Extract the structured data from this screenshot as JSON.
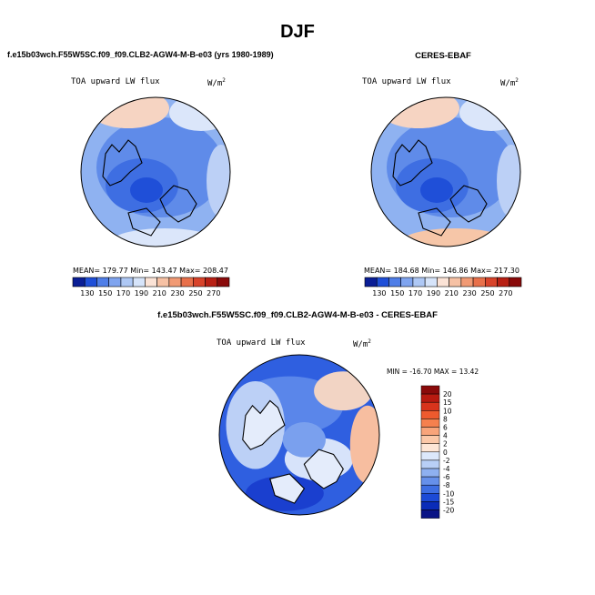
{
  "figure": {
    "season": "DJF",
    "panel_title_model": "f.e15b03wch.F55W5SC.f09_f09.CLB2-AGW4-M-B-e03 (yrs 1980-1989)",
    "panel_title_obs": "CERES-EBAF",
    "panel_title_diff": "f.e15b03wch.F55W5SC.f09_f09.CLB2-AGW4-M-B-e03 - CERES-EBAF"
  },
  "chart_data": [
    {
      "type": "heatmap",
      "panel": "model",
      "variable_label": "TOA upward LW flux",
      "units_base": "W/m",
      "units_exp": "2",
      "stats": {
        "mean": "179.77",
        "min": "143.47",
        "max": "208.47"
      },
      "stats_text": "MEAN= 179.77  Min= 143.47  Max= 208.47",
      "colorbar_ticks": [
        "130",
        "150",
        "170",
        "190",
        "210",
        "230",
        "250",
        "270"
      ],
      "colorbar_colors": [
        "#0a1e96",
        "#1f4fd8",
        "#4f7ee8",
        "#7fa4ef",
        "#aec8f5",
        "#d6e4fa",
        "#fbe3d6",
        "#f6c1a4",
        "#f19a74",
        "#e8704a",
        "#d8432a",
        "#b82014",
        "#8a0a0a"
      ]
    },
    {
      "type": "heatmap",
      "panel": "obs",
      "variable_label": "TOA upward LW flux",
      "units_base": "W/m",
      "units_exp": "2",
      "stats": {
        "mean": "184.68",
        "min": "146.86",
        "max": "217.30"
      },
      "stats_text": "MEAN= 184.68  Min= 146.86  Max= 217.30",
      "colorbar_ticks": [
        "130",
        "150",
        "170",
        "190",
        "210",
        "230",
        "250",
        "270"
      ],
      "colorbar_colors": [
        "#0a1e96",
        "#1f4fd8",
        "#4f7ee8",
        "#7fa4ef",
        "#aec8f5",
        "#d6e4fa",
        "#fbe3d6",
        "#f6c1a4",
        "#f19a74",
        "#e8704a",
        "#d8432a",
        "#b82014",
        "#8a0a0a"
      ]
    },
    {
      "type": "heatmap",
      "panel": "difference",
      "variable_label": "TOA upward LW flux",
      "units_base": "W/m",
      "units_exp": "2",
      "stats": {
        "min": "-16.70",
        "max": "13.42"
      },
      "stats_text": "MIN = -16.70 MAX =  13.42",
      "colorbar_levels": [
        "20",
        "15",
        "10",
        "8",
        "6",
        "4",
        "2",
        "0",
        "-2",
        "-4",
        "-6",
        "-8",
        "-10",
        "-15",
        "-20"
      ],
      "colorbar_colors": [
        "#8a0a0a",
        "#b81a10",
        "#d8341c",
        "#ee5a2e",
        "#f5804e",
        "#f8a47a",
        "#fbc8a8",
        "#fde6d6",
        "#dce8fb",
        "#b8cff6",
        "#8eb0f0",
        "#6690ea",
        "#3e6ee2",
        "#1c4ad6",
        "#0a2cb8",
        "#0a1486"
      ]
    }
  ]
}
